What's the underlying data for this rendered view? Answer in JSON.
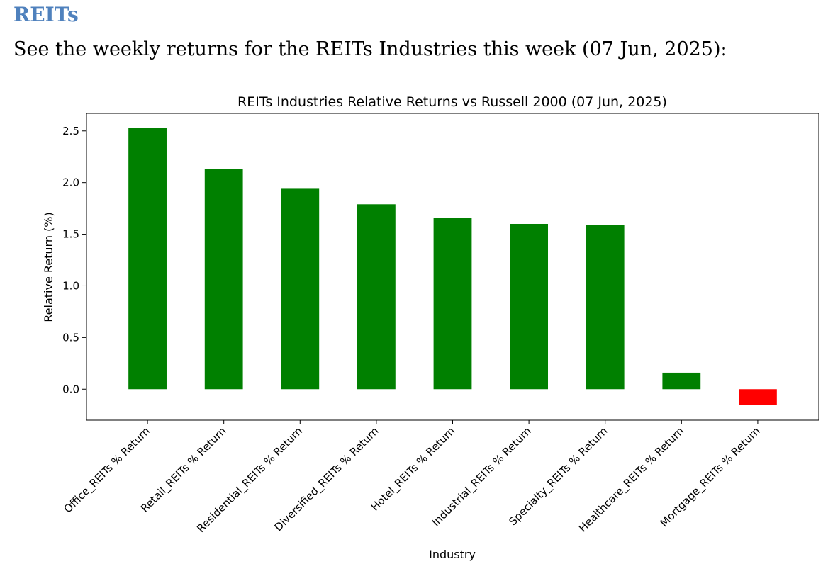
{
  "page": {
    "heading": "REITs",
    "intro": "See the weekly returns for the REITs Industries this week (07 Jun, 2025):"
  },
  "chart_data": {
    "type": "bar",
    "title": "REITs Industries Relative Returns vs Russell 2000 (07 Jun, 2025)",
    "xlabel": "Industry",
    "ylabel": "Relative Return (%)",
    "categories": [
      "Office_REITs % Return",
      "Retail_REITs % Return",
      "Residential_REITs % Return",
      "Diversified_REITs % Return",
      "Hotel_REITs % Return",
      "Industrial_REITs % Return",
      "Specialty_REITs % Return",
      "Healthcare_REITs % Return",
      "Mortgage_REITs % Return"
    ],
    "values": [
      2.53,
      2.13,
      1.94,
      1.79,
      1.66,
      1.6,
      1.59,
      0.16,
      -0.15
    ],
    "ylim": [
      -0.3,
      2.67
    ],
    "yticks": [
      0.0,
      0.5,
      1.0,
      1.5,
      2.0,
      2.5
    ],
    "ytick_labels": [
      "0.0",
      "0.5",
      "1.0",
      "1.5",
      "2.0",
      "2.5"
    ],
    "grid": false,
    "colors": {
      "positive": "#008000",
      "negative": "#ff0000"
    }
  }
}
